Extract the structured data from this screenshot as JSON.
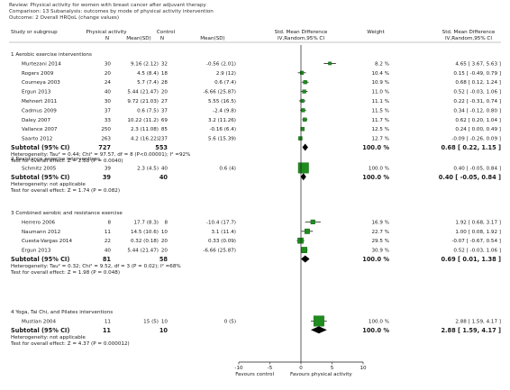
{
  "header": {
    "review": "Review:  Physical activity for women with breast cancer after adjuvant therapy",
    "comparison": "Comparison:  13 Subanalysis: outcomes by mode of physical activity intervention",
    "outcome": "Outcome:  2 Overall HRQoL (change values)"
  },
  "columns": {
    "study": "Study or subgroup",
    "exp_group": "Physical activity",
    "ctl_group": "Control",
    "n": "N",
    "mean_sd": "Mean(SD)",
    "effect_title": "Std. Mean Difference",
    "effect_method": "IV,Random,95% CI",
    "weight": "Weight",
    "ci_title": "Std. Mean Difference",
    "ci_method": "IV,Random,95% CI"
  },
  "chart_data": {
    "type": "forest",
    "x_ticks": [
      -10,
      -5,
      0,
      5,
      10
    ],
    "xlim": [
      -10,
      10
    ],
    "xlabel_left": "Favours control",
    "xlabel_right": "Favours physical activity",
    "subgroups": [
      {
        "title": "1 Aerobic exercise interventions",
        "studies": [
          {
            "name": "Murtezani 2014",
            "n1": "30",
            "m1": "9.16 (2.12)",
            "n2": "32",
            "m2": "-0.56 (2.01)",
            "smd": 4.65,
            "lo": 3.67,
            "hi": 5.63,
            "weight": "8.2 %",
            "ci": "4.65 [ 3.67, 5.63 ]"
          },
          {
            "name": "Rogers 2009",
            "n1": "20",
            "m1": "4.5 (8.4)",
            "n2": "18",
            "m2": "2.9 (12)",
            "smd": 0.15,
            "lo": -0.49,
            "hi": 0.79,
            "weight": "10.4 %",
            "ci": "0.15 [ -0.49, 0.79 ]"
          },
          {
            "name": "Courneya 2003",
            "n1": "24",
            "m1": "5.7 (7.4)",
            "n2": "28",
            "m2": "0.6 (7.4)",
            "smd": 0.68,
            "lo": 0.12,
            "hi": 1.24,
            "weight": "10.9 %",
            "ci": "0.68 [ 0.12, 1.24 ]"
          },
          {
            "name": "Ergun 2013",
            "n1": "40",
            "m1": "5.44 (21.47)",
            "n2": "20",
            "m2": "-6.66 (25.87)",
            "smd": 0.52,
            "lo": -0.03,
            "hi": 1.06,
            "weight": "11.0 %",
            "ci": "0.52 [ -0.03, 1.06 ]"
          },
          {
            "name": "Mehnert 2011",
            "n1": "30",
            "m1": "9.72 (21.03)",
            "n2": "27",
            "m2": "5.55 (16.5)",
            "smd": 0.22,
            "lo": -0.31,
            "hi": 0.74,
            "weight": "11.1 %",
            "ci": "0.22 [ -0.31, 0.74 ]"
          },
          {
            "name": "Cadmus 2009",
            "n1": "37",
            "m1": "0.6 (7.5)",
            "n2": "37",
            "m2": "-2.4 (9.8)",
            "smd": 0.34,
            "lo": -0.12,
            "hi": 0.8,
            "weight": "11.5 %",
            "ci": "0.34 [ -0.12, 0.80 ]"
          },
          {
            "name": "Daley 2007",
            "n1": "33",
            "m1": "10.22 (11.2)",
            "n2": "69",
            "m2": "3.2 (11.26)",
            "smd": 0.62,
            "lo": 0.2,
            "hi": 1.04,
            "weight": "11.7 %",
            "ci": "0.62 [ 0.20, 1.04 ]"
          },
          {
            "name": "Vallance 2007",
            "n1": "250",
            "m1": "2.3 (11.08)",
            "n2": "85",
            "m2": "-0.16 (6.4)",
            "smd": 0.24,
            "lo": 0.0,
            "hi": 0.49,
            "weight": "12.5 %",
            "ci": "0.24 [ 0.00, 0.49 ]"
          },
          {
            "name": "Saarto 2012",
            "n1": "263",
            "m1": "4.2 (16.22)",
            "n2": "237",
            "m2": "5.6 (15.39)",
            "smd": -0.09,
            "lo": -0.26,
            "hi": 0.09,
            "weight": "12.7 %",
            "ci": "-0.09 [ -0.26, 0.09 ]"
          }
        ],
        "subtotal": {
          "label": "Subtotal (95% CI)",
          "n1": "727",
          "n2": "553",
          "smd": 0.68,
          "lo": 0.22,
          "hi": 1.15,
          "weight": "100.0 %",
          "ci": "0.68 [ 0.22, 1.15 ]"
        },
        "heterogeneity": "Heterogeneity: Tau² = 0.44; Chi² = 97.57, df = 8 (P<0.00001); I² =92%",
        "overall": "Test for overall effect: Z = 2.88 (P = 0.0040)"
      },
      {
        "title": "2 Resistance exercise interventions",
        "studies": [
          {
            "name": "Schmitz 2005",
            "n1": "39",
            "m1": "2.3 (4.5)",
            "n2": "40",
            "m2": "0.6 (4)",
            "smd": 0.4,
            "lo": -0.05,
            "hi": 0.84,
            "weight": "100.0 %",
            "ci": "0.40 [ -0.05, 0.84 ]"
          }
        ],
        "subtotal": {
          "label": "Subtotal (95% CI)",
          "n1": "39",
          "n2": "40",
          "smd": 0.4,
          "lo": -0.05,
          "hi": 0.84,
          "weight": "100.0 %",
          "ci": "0.40 [ -0.05, 0.84 ]"
        },
        "heterogeneity": "Heterogeneity: not applicable",
        "overall": "Test for overall effect: Z = 1.74 (P = 0.082)"
      },
      {
        "title": "3 Combined aerobic and resistance exercise",
        "studies": [
          {
            "name": "Herrero 2006",
            "n1": "8",
            "m1": "17.7 (8.3)",
            "n2": "8",
            "m2": "-10.4 (17.7)",
            "smd": 1.92,
            "lo": 0.68,
            "hi": 3.17,
            "weight": "16.9 %",
            "ci": "1.92 [ 0.68, 3.17 ]"
          },
          {
            "name": "Naumann 2012",
            "n1": "11",
            "m1": "14.5 (10.6)",
            "n2": "10",
            "m2": "3.1 (11.4)",
            "smd": 1.0,
            "lo": 0.08,
            "hi": 1.92,
            "weight": "22.7 %",
            "ci": "1.00 [ 0.08, 1.92 ]"
          },
          {
            "name": "Cuesta-Vargas 2014",
            "n1": "22",
            "m1": "0.32 (0.18)",
            "n2": "20",
            "m2": "0.33 (0.09)",
            "smd": -0.07,
            "lo": -0.67,
            "hi": 0.54,
            "weight": "29.5 %",
            "ci": "-0.07 [ -0.67, 0.54 ]"
          },
          {
            "name": "Ergun 2013",
            "n1": "40",
            "m1": "5.44 (21.47)",
            "n2": "20",
            "m2": "-6.66 (25.87)",
            "smd": 0.52,
            "lo": -0.03,
            "hi": 1.06,
            "weight": "30.9 %",
            "ci": "0.52 [ -0.03, 1.06 ]"
          }
        ],
        "subtotal": {
          "label": "Subtotal (95% CI)",
          "n1": "81",
          "n2": "58",
          "smd": 0.69,
          "lo": 0.01,
          "hi": 1.38,
          "weight": "100.0 %",
          "ci": "0.69 [ 0.01, 1.38 ]"
        },
        "heterogeneity": "Heterogeneity: Tau² = 0.32; Chi² = 9.52, df = 3 (P = 0.02); I² =68%",
        "overall": "Test for overall effect: Z = 1.98 (P = 0.048)"
      },
      {
        "title": "4 Yoga, Tai Chi, and Pilates interventions",
        "studies": [
          {
            "name": "Mustian 2004",
            "n1": "11",
            "m1": "15 (5)",
            "n2": "10",
            "m2": "0 (5)",
            "smd": 2.88,
            "lo": 1.59,
            "hi": 4.17,
            "weight": "100.0 %",
            "ci": "2.88 [ 1.59, 4.17 ]"
          }
        ],
        "subtotal": {
          "label": "Subtotal (95% CI)",
          "n1": "11",
          "n2": "10",
          "smd": 2.88,
          "lo": 1.59,
          "hi": 4.17,
          "weight": "100.0 %",
          "ci": "2.88 [ 1.59, 4.17 ]"
        },
        "heterogeneity": "Heterogeneity: not applicable",
        "overall": "Test for overall effect: Z = 4.37 (P = 0.000012)"
      }
    ],
    "colors": {
      "square": "#1e8c1e",
      "square_edge": "#0d5a0d",
      "text": "#1a1a1a",
      "rule": "#8a8a8a"
    }
  }
}
